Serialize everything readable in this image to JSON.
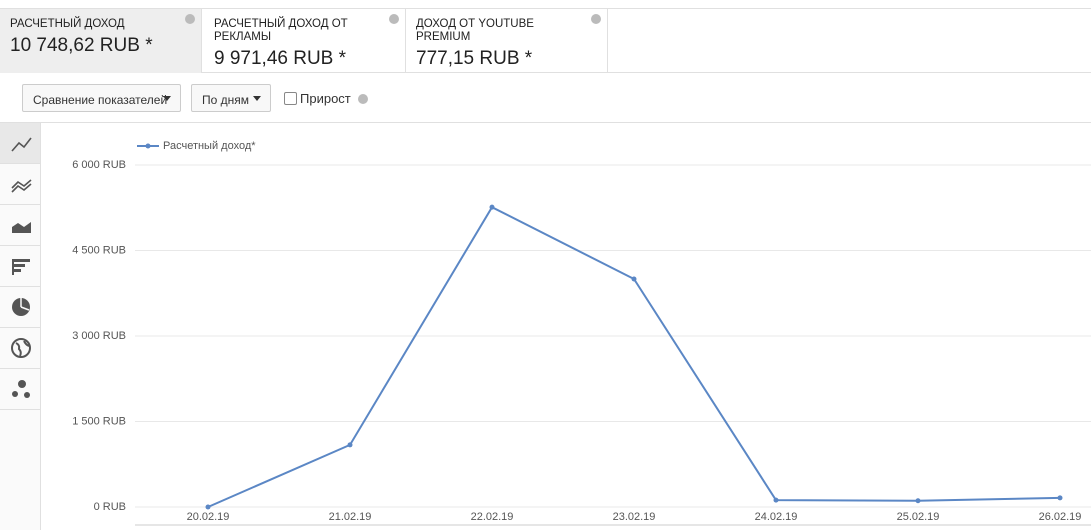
{
  "tabs": [
    {
      "label": "РАСЧЕТНЫЙ ДОХОД",
      "value": "10 748,62 RUB *"
    },
    {
      "label": "РАСЧЕТНЫЙ ДОХОД ОТ РЕКЛАМЫ",
      "value": "9 971,46 RUB *"
    },
    {
      "label": "ДОХОД ОТ YOUTUBE PREMIUM",
      "value": "777,15 RUB *"
    }
  ],
  "controls": {
    "compare": "Сравнение показателей",
    "period": "По дням",
    "growth": "Прирост"
  },
  "chart_data": {
    "type": "line",
    "categories": [
      "20.02.19",
      "21.02.19",
      "22.02.19",
      "23.02.19",
      "24.02.19",
      "25.02.19",
      "26.02.19"
    ],
    "series": [
      {
        "name": "Расчетный доход*",
        "color": "#5b87c5",
        "values": [
          0,
          1090,
          5260,
          4000,
          120,
          110,
          160
        ]
      }
    ],
    "ylim": [
      0,
      6000
    ],
    "yticks": [
      {
        "value": 0,
        "label": "0 RUB"
      },
      {
        "value": 1500,
        "label": "1 500 RUB"
      },
      {
        "value": 3000,
        "label": "3 000 RUB"
      },
      {
        "value": 4500,
        "label": "4 500 RUB"
      },
      {
        "value": 6000,
        "label": "6 000 RUB"
      }
    ],
    "grid": true
  }
}
